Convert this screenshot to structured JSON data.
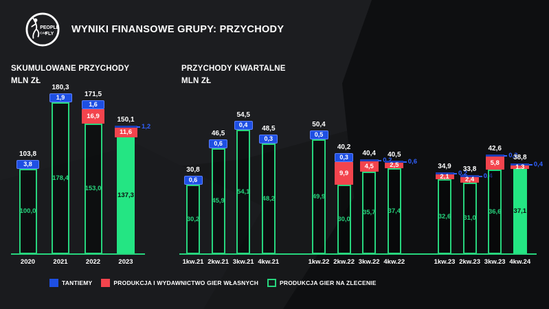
{
  "header": {
    "title": "WYNIKI FINANSOWE GRUPY: PRZYCHODY",
    "logo": {
      "line1": "PEOPLE",
      "line2": "CAN",
      "line3": "FLY"
    }
  },
  "colors": {
    "blue": "#1e4fe3",
    "blue_text": "#3060ff",
    "red": "#f3444d",
    "green": "#27d57d",
    "green_fill": "#24e583",
    "text": "#ffffff",
    "background": "#17181a"
  },
  "legend": [
    {
      "label": "TANTIEMY",
      "swatch": "blue-filled"
    },
    {
      "label": "PRODUKCJA I WYDAWNICTWO GIER WŁASNYCH",
      "swatch": "red-filled"
    },
    {
      "label": "PRODUKCJA GIER NA ZLECENIE",
      "swatch": "green-outline"
    }
  ],
  "chart_data": [
    {
      "type": "bar",
      "stacked": true,
      "title": "SKUMULOWANE PRZYCHODY",
      "unit_label": "MLN ZŁ",
      "legend_position": "bottom",
      "grid": false,
      "categories": [
        "2020",
        "2021",
        "2022",
        "2023"
      ],
      "series": [
        {
          "name": "TANTIEMY",
          "color_key": "blue",
          "values": [
            3.8,
            1.9,
            1.6,
            1.2
          ]
        },
        {
          "name": "PRODUKCJA I WYDAWNICTWO GIER WŁASNYCH",
          "color_key": "red",
          "values": [
            0,
            0,
            16.9,
            11.6
          ]
        },
        {
          "name": "PRODUKCJA GIER NA ZLECENIE",
          "color_key": "green",
          "values": [
            100.0,
            178.4,
            153.0,
            137.3
          ]
        }
      ],
      "totals": [
        103.8,
        180.3,
        171.5,
        150.1
      ],
      "ylim": [
        0,
        190
      ],
      "bars": [
        {
          "category": "2020",
          "total": 103.8,
          "total_label": "103,8",
          "blue": 3.8,
          "blue_label": "3,8",
          "blue_style": "badge",
          "red": 0,
          "red_label": "",
          "green": 100.0,
          "green_label": "100,0",
          "filled": false
        },
        {
          "category": "2021",
          "total": 180.3,
          "total_label": "180,3",
          "blue": 1.9,
          "blue_label": "1,9",
          "blue_style": "badge",
          "red": 0,
          "red_label": "",
          "green": 178.4,
          "green_label": "178,4",
          "filled": false
        },
        {
          "category": "2022",
          "total": 171.5,
          "total_label": "171,5",
          "blue": 1.6,
          "blue_label": "1,6",
          "blue_style": "badge",
          "red": 16.9,
          "red_label": "16,9",
          "green": 153.0,
          "green_label": "153,0",
          "filled": false
        },
        {
          "category": "2023",
          "total": 150.1,
          "total_label": "150,1",
          "blue": 1.2,
          "blue_label": "1,2",
          "blue_style": "outside",
          "red": 11.6,
          "red_label": "11,6",
          "green": 137.3,
          "green_label": "137,3",
          "filled": true
        }
      ]
    },
    {
      "type": "bar",
      "stacked": true,
      "title": "PRZYCHODY KWARTALNE",
      "unit_label": "MLN ZŁ",
      "legend_position": "bottom",
      "grid": false,
      "categories": [
        "1kw.21",
        "2kw.21",
        "3kw.21",
        "4kw.21",
        "1kw.22",
        "2kw.22",
        "3kw.22",
        "4kw.22",
        "1kw.23",
        "2kw.23",
        "3kw.23",
        "4kw.24"
      ],
      "series": [
        {
          "name": "TANTIEMY",
          "color_key": "blue",
          "values": [
            0.6,
            0.6,
            0.4,
            0.3,
            0.5,
            0.3,
            0.2,
            0.6,
            0.2,
            0.4,
            0.2,
            0.4
          ]
        },
        {
          "name": "PRODUKCJA I WYDAWNICTWO GIER WŁASNYCH",
          "color_key": "red",
          "values": [
            0,
            0,
            0,
            0,
            0,
            9.9,
            4.5,
            2.5,
            2.1,
            2.4,
            5.8,
            1.3
          ]
        },
        {
          "name": "PRODUKCJA GIER NA ZLECENIE",
          "color_key": "green",
          "values": [
            30.2,
            45.9,
            54.1,
            48.2,
            49.9,
            30.0,
            35.7,
            37.4,
            32.6,
            31.0,
            36.6,
            37.1
          ]
        }
      ],
      "totals": [
        30.8,
        46.5,
        54.5,
        48.5,
        50.4,
        40.2,
        40.4,
        40.5,
        34.9,
        33.8,
        42.6,
        38.8
      ],
      "ylim": [
        0,
        60
      ],
      "bars": [
        {
          "category": "1kw.21",
          "total": 30.8,
          "total_label": "30,8",
          "blue": 0.6,
          "blue_label": "0,6",
          "blue_style": "badge",
          "red": 0,
          "red_label": "",
          "green": 30.2,
          "green_label": "30,2",
          "filled": false
        },
        {
          "category": "2kw.21",
          "total": 46.5,
          "total_label": "46,5",
          "blue": 0.6,
          "blue_label": "0,6",
          "blue_style": "badge",
          "red": 0,
          "red_label": "",
          "green": 45.9,
          "green_label": "45,9",
          "filled": false
        },
        {
          "category": "3kw.21",
          "total": 54.5,
          "total_label": "54,5",
          "blue": 0.4,
          "blue_label": "0,4",
          "blue_style": "badge",
          "red": 0,
          "red_label": "",
          "green": 54.1,
          "green_label": "54,1",
          "filled": false
        },
        {
          "category": "4kw.21",
          "total": 48.5,
          "total_label": "48,5",
          "blue": 0.3,
          "blue_label": "0,3",
          "blue_style": "badge",
          "red": 0,
          "red_label": "",
          "green": 48.2,
          "green_label": "48,2",
          "filled": false
        },
        {
          "category": "1kw.22",
          "total": 50.4,
          "total_label": "50,4",
          "blue": 0.5,
          "blue_label": "0,5",
          "blue_style": "badge",
          "red": 0,
          "red_label": "",
          "green": 49.9,
          "green_label": "49,9",
          "filled": false
        },
        {
          "category": "2kw.22",
          "total": 40.2,
          "total_label": "40,2",
          "blue": 0.3,
          "blue_label": "0,3",
          "blue_style": "badge",
          "red": 9.9,
          "red_label": "9,9",
          "green": 30.0,
          "green_label": "30,0",
          "filled": false
        },
        {
          "category": "3kw.22",
          "total": 40.4,
          "total_label": "40,4",
          "blue": 0.2,
          "blue_label": "0,2",
          "blue_style": "outside",
          "red": 4.5,
          "red_label": "4,5",
          "green": 35.7,
          "green_label": "35,7",
          "filled": false
        },
        {
          "category": "4kw.22",
          "total": 40.5,
          "total_label": "40,5",
          "blue": 0.6,
          "blue_label": "0,6",
          "blue_style": "outside",
          "red": 2.5,
          "red_label": "2,5",
          "green": 37.4,
          "green_label": "37,4",
          "filled": false
        },
        {
          "category": "1kw.23",
          "total": 34.9,
          "total_label": "34,9",
          "blue": 0.2,
          "blue_label": "0,2",
          "blue_style": "outside",
          "red": 2.1,
          "red_label": "2,1",
          "green": 32.6,
          "green_label": "32,6",
          "filled": false
        },
        {
          "category": "2kw.23",
          "total": 33.8,
          "total_label": "33,8",
          "blue": 0.4,
          "blue_label": "0,4",
          "blue_style": "outside",
          "red": 2.4,
          "red_label": "2,4",
          "green": 31.0,
          "green_label": "31,0",
          "filled": false
        },
        {
          "category": "3kw.23",
          "total": 42.6,
          "total_label": "42,6",
          "blue": 0.2,
          "blue_label": "0,2",
          "blue_style": "outside",
          "red": 5.8,
          "red_label": "5,8",
          "green": 36.6,
          "green_label": "36,6",
          "filled": false
        },
        {
          "category": "4kw.24",
          "total": 38.8,
          "total_label": "38,8",
          "blue": 0.4,
          "blue_label": "0,4",
          "blue_style": "outside",
          "red": 1.3,
          "red_label": "1,3",
          "green": 37.1,
          "green_label": "37,1",
          "filled": true
        }
      ]
    }
  ]
}
